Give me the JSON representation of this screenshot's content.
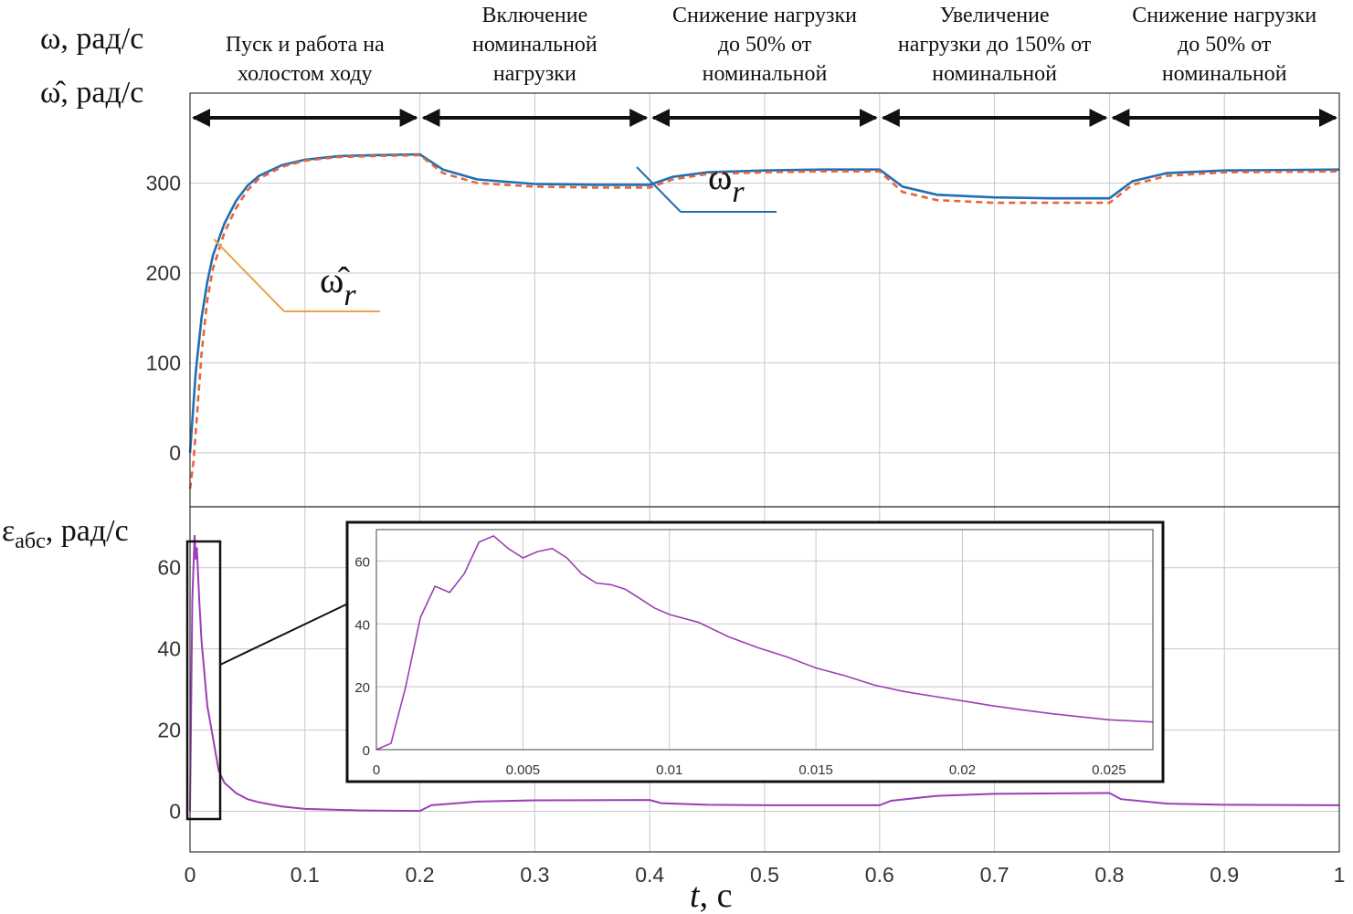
{
  "figure": {
    "top_ylabel_line1": "ω, рад/с",
    "top_ylabel_line2": "ω̂, рад/с",
    "bottom_ylabel_main": "ε",
    "bottom_ylabel_sub": "абс",
    "bottom_ylabel_unit": ", рад/с",
    "xlabel_var": "t",
    "xlabel_unit": ", с"
  },
  "colors": {
    "omega_actual": "#1f6fb4",
    "omega_estimate": "#e8643a",
    "omega_estimate_leader": "#f0a050",
    "error": "#9a3fb4",
    "arrow": "#111111",
    "grid": "#c8c8c8",
    "axes": "#333333"
  },
  "stages": [
    {
      "lines": [
        "Пуск и работа на",
        "холостом ходу"
      ],
      "t_start": 0.0,
      "t_end": 0.2
    },
    {
      "lines": [
        "Включение",
        "номинальной",
        "нагрузки"
      ],
      "t_start": 0.2,
      "t_end": 0.4
    },
    {
      "lines": [
        "Снижение нагрузки",
        "до 50% от",
        "номинальной"
      ],
      "t_start": 0.4,
      "t_end": 0.6
    },
    {
      "lines": [
        "Увеличение",
        "нагрузки до 150% от",
        "номинальной"
      ],
      "t_start": 0.6,
      "t_end": 0.8
    },
    {
      "lines": [
        "Снижение нагрузки",
        "до 50% от",
        "номинальной"
      ],
      "t_start": 0.8,
      "t_end": 1.0
    }
  ],
  "chart_data": [
    {
      "type": "line",
      "panel": "top",
      "xlim": [
        0,
        1
      ],
      "ylim": [
        -60,
        400
      ],
      "yticks": [
        "0",
        "100",
        "200",
        "300"
      ],
      "ytick_values": [
        0,
        100,
        200,
        300
      ],
      "grid": true,
      "series": [
        {
          "name": "ω_r",
          "label_main": "ω",
          "label_sub": "r",
          "style": "solid",
          "points": [
            [
              0,
              0
            ],
            [
              0.005,
              90
            ],
            [
              0.01,
              150
            ],
            [
              0.015,
              190
            ],
            [
              0.02,
              220
            ],
            [
              0.03,
              255
            ],
            [
              0.04,
              280
            ],
            [
              0.05,
              297
            ],
            [
              0.06,
              308
            ],
            [
              0.08,
              320
            ],
            [
              0.1,
              326
            ],
            [
              0.13,
              330
            ],
            [
              0.16,
              331
            ],
            [
              0.2,
              332
            ],
            [
              0.22,
              315
            ],
            [
              0.25,
              304
            ],
            [
              0.3,
              299
            ],
            [
              0.35,
              298
            ],
            [
              0.4,
              298
            ],
            [
              0.42,
              307
            ],
            [
              0.45,
              312
            ],
            [
              0.5,
              314
            ],
            [
              0.55,
              315
            ],
            [
              0.6,
              315
            ],
            [
              0.62,
              296
            ],
            [
              0.65,
              287
            ],
            [
              0.7,
              284
            ],
            [
              0.75,
              283
            ],
            [
              0.8,
              283
            ],
            [
              0.82,
              302
            ],
            [
              0.85,
              311
            ],
            [
              0.9,
              314
            ],
            [
              1.0,
              315
            ]
          ]
        },
        {
          "name": "ω̂_r",
          "label_main": "ω̂",
          "label_sub": "r",
          "style": "dashed",
          "points": [
            [
              0,
              -40
            ],
            [
              0.003,
              -10
            ],
            [
              0.006,
              40
            ],
            [
              0.01,
              110
            ],
            [
              0.015,
              170
            ],
            [
              0.02,
              205
            ],
            [
              0.03,
              245
            ],
            [
              0.04,
              272
            ],
            [
              0.05,
              292
            ],
            [
              0.06,
              305
            ],
            [
              0.08,
              318
            ],
            [
              0.1,
              325
            ],
            [
              0.13,
              329
            ],
            [
              0.16,
              330
            ],
            [
              0.2,
              331
            ],
            [
              0.22,
              311
            ],
            [
              0.25,
              300
            ],
            [
              0.3,
              296
            ],
            [
              0.35,
              295
            ],
            [
              0.4,
              295
            ],
            [
              0.42,
              304
            ],
            [
              0.45,
              310
            ],
            [
              0.5,
              312
            ],
            [
              0.55,
              313
            ],
            [
              0.6,
              313
            ],
            [
              0.62,
              290
            ],
            [
              0.65,
              281
            ],
            [
              0.7,
              278
            ],
            [
              0.75,
              278
            ],
            [
              0.8,
              278
            ],
            [
              0.82,
              298
            ],
            [
              0.85,
              308
            ],
            [
              0.9,
              312
            ],
            [
              1.0,
              313
            ]
          ]
        }
      ]
    },
    {
      "type": "line",
      "panel": "bottom",
      "xlim": [
        0,
        1
      ],
      "ylim": [
        -10,
        75
      ],
      "xticks": [
        "0",
        "0.1",
        "0.2",
        "0.3",
        "0.4",
        "0.5",
        "0.6",
        "0.7",
        "0.8",
        "0.9",
        "1"
      ],
      "xtick_values": [
        0,
        0.1,
        0.2,
        0.3,
        0.4,
        0.5,
        0.6,
        0.7,
        0.8,
        0.9,
        1.0
      ],
      "yticks": [
        "0",
        "20",
        "40",
        "60"
      ],
      "ytick_values": [
        0,
        20,
        40,
        60
      ],
      "grid": true,
      "series": [
        {
          "name": "ε_абс",
          "points": [
            [
              0,
              0
            ],
            [
              0.002,
              52
            ],
            [
              0.004,
              68
            ],
            [
              0.005,
              62
            ],
            [
              0.006,
              65
            ],
            [
              0.008,
              52
            ],
            [
              0.01,
              42
            ],
            [
              0.015,
              26
            ],
            [
              0.02,
              18
            ],
            [
              0.025,
              10
            ],
            [
              0.03,
              7
            ],
            [
              0.04,
              4.5
            ],
            [
              0.05,
              3
            ],
            [
              0.06,
              2.2
            ],
            [
              0.08,
              1.2
            ],
            [
              0.1,
              0.6
            ],
            [
              0.15,
              0.2
            ],
            [
              0.2,
              0.1
            ],
            [
              0.21,
              1.5
            ],
            [
              0.25,
              2.4
            ],
            [
              0.3,
              2.7
            ],
            [
              0.4,
              2.8
            ],
            [
              0.41,
              2.0
            ],
            [
              0.45,
              1.6
            ],
            [
              0.5,
              1.5
            ],
            [
              0.6,
              1.5
            ],
            [
              0.61,
              2.6
            ],
            [
              0.65,
              3.8
            ],
            [
              0.7,
              4.3
            ],
            [
              0.8,
              4.5
            ],
            [
              0.81,
              3.0
            ],
            [
              0.85,
              1.9
            ],
            [
              0.9,
              1.6
            ],
            [
              1.0,
              1.5
            ]
          ]
        }
      ]
    },
    {
      "type": "line",
      "panel": "inset",
      "xlim": [
        0,
        0.0265
      ],
      "ylim": [
        0,
        70
      ],
      "xticks": [
        "0",
        "0.005",
        "0.01",
        "0.015",
        "0.02",
        "0.025"
      ],
      "xtick_values": [
        0,
        0.005,
        0.01,
        0.015,
        0.02,
        0.025
      ],
      "yticks": [
        "0",
        "20",
        "40",
        "60"
      ],
      "ytick_values": [
        0,
        20,
        40,
        60
      ],
      "grid": true,
      "series": [
        {
          "name": "ε_абс",
          "points": [
            [
              0,
              0
            ],
            [
              0.0005,
              2
            ],
            [
              0.001,
              20
            ],
            [
              0.0015,
              42
            ],
            [
              0.002,
              52
            ],
            [
              0.0025,
              50
            ],
            [
              0.003,
              56
            ],
            [
              0.0035,
              66
            ],
            [
              0.004,
              68
            ],
            [
              0.0045,
              64
            ],
            [
              0.005,
              61
            ],
            [
              0.0055,
              63
            ],
            [
              0.006,
              64
            ],
            [
              0.0065,
              61
            ],
            [
              0.007,
              56
            ],
            [
              0.0075,
              53
            ],
            [
              0.008,
              52.5
            ],
            [
              0.0085,
              51
            ],
            [
              0.009,
              48
            ],
            [
              0.0095,
              45
            ],
            [
              0.01,
              43
            ],
            [
              0.011,
              40.5
            ],
            [
              0.012,
              36
            ],
            [
              0.013,
              32.5
            ],
            [
              0.014,
              29.5
            ],
            [
              0.015,
              26
            ],
            [
              0.016,
              23.5
            ],
            [
              0.017,
              20.5
            ],
            [
              0.018,
              18.5
            ],
            [
              0.019,
              17
            ],
            [
              0.02,
              15.5
            ],
            [
              0.021,
              14
            ],
            [
              0.022,
              12.7
            ],
            [
              0.023,
              11.5
            ],
            [
              0.024,
              10.5
            ],
            [
              0.025,
              9.5
            ],
            [
              0.0265,
              8.8
            ]
          ]
        }
      ]
    }
  ]
}
